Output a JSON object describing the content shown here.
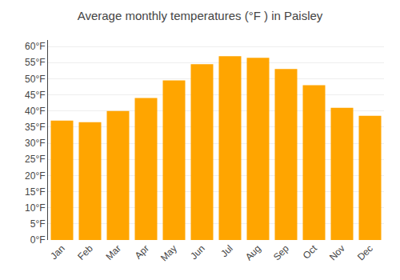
{
  "chart_data": {
    "type": "bar",
    "title": "Average monthly temperatures (°F ) in Paisley",
    "categories": [
      "Jan",
      "Feb",
      "Mar",
      "Apr",
      "May",
      "Jun",
      "Jul",
      "Aug",
      "Sep",
      "Oct",
      "Nov",
      "Dec"
    ],
    "values": [
      37,
      36.5,
      40,
      44,
      49.5,
      54.5,
      57,
      56.5,
      53,
      48,
      41,
      38.5
    ],
    "color": "#FFA500",
    "ylim": [
      0,
      62
    ],
    "yticks": [
      {
        "value": 0,
        "label": "0°F"
      },
      {
        "value": 5,
        "label": "5°F"
      },
      {
        "value": 10,
        "label": "10°F"
      },
      {
        "value": 15,
        "label": "15°F"
      },
      {
        "value": 20,
        "label": "20°F"
      },
      {
        "value": 25,
        "label": "25°F"
      },
      {
        "value": 30,
        "label": "30°F"
      },
      {
        "value": 35,
        "label": "35°F"
      },
      {
        "value": 40,
        "label": "40°F"
      },
      {
        "value": 45,
        "label": "45°F"
      },
      {
        "value": 50,
        "label": "50°F"
      },
      {
        "value": 55,
        "label": "55°F"
      },
      {
        "value": 60,
        "label": "60°F"
      }
    ],
    "grid": true
  }
}
